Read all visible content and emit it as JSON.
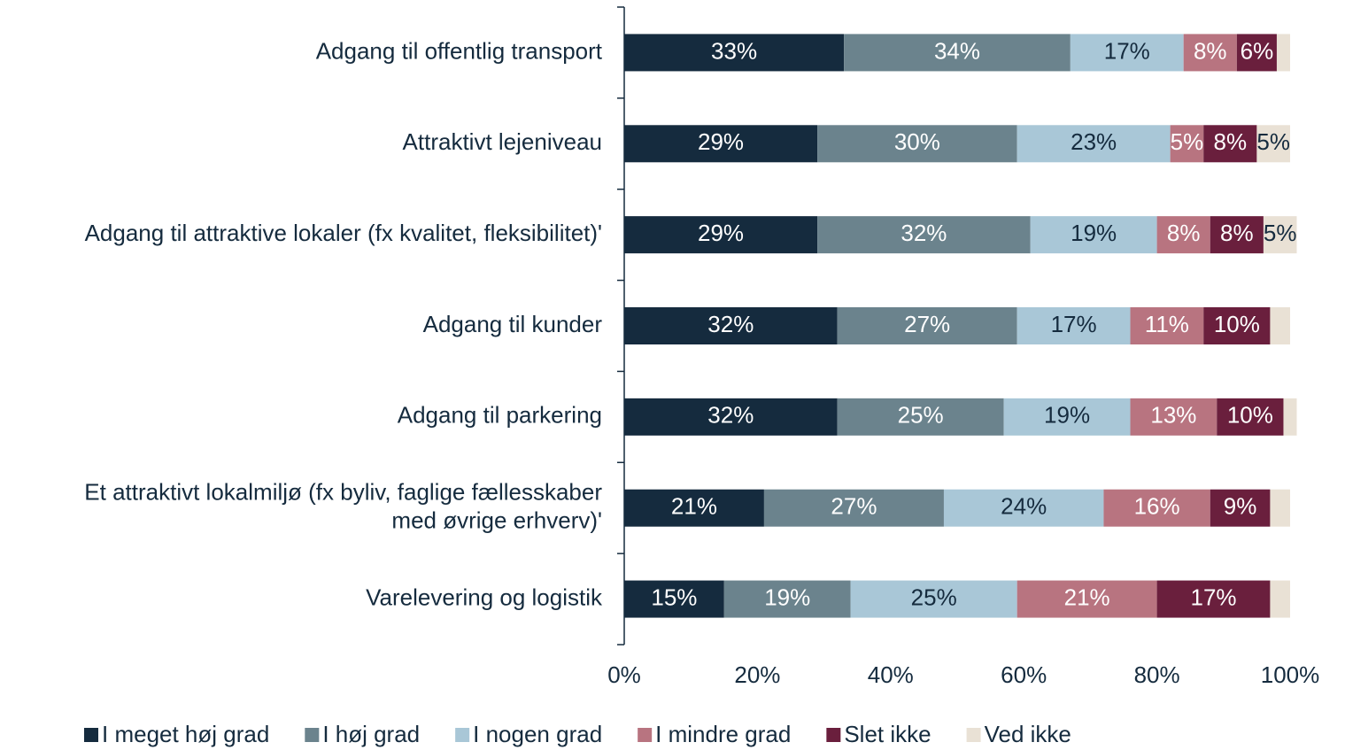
{
  "chart_data": {
    "type": "stacked_bar_horizontal",
    "categories": [
      "Adgang til offentlig transport",
      "Attraktivt lejeniveau",
      "Adgang til attraktive lokaler (fx kvalitet, fleksibilitet)'",
      "Adgang til kunder",
      "Adgang til parkering",
      "Et attraktivt lokalmiljø (fx byliv, faglige fællesskaber\nmed øvrige erhverv)'",
      "Varelevering og logistik"
    ],
    "series": [
      {
        "name": "I meget høj grad",
        "color": "#152b3e",
        "label_color": "#ffffff",
        "values": [
          33,
          29,
          29,
          32,
          32,
          21,
          15
        ],
        "value_labels": [
          "33%",
          "29%",
          "29%",
          "32%",
          "32%",
          "21%",
          "15%"
        ]
      },
      {
        "name": "I høj grad",
        "color": "#6b838d",
        "label_color": "#ffffff",
        "values": [
          34,
          30,
          32,
          27,
          25,
          27,
          19
        ],
        "value_labels": [
          "34%",
          "30%",
          "32%",
          "27%",
          "25%",
          "27%",
          "19%"
        ]
      },
      {
        "name": "I nogen grad",
        "color": "#a9c7d7",
        "label_color": "#152b3e",
        "values": [
          17,
          23,
          19,
          17,
          19,
          24,
          25
        ],
        "value_labels": [
          "17%",
          "23%",
          "19%",
          "17%",
          "19%",
          "24%",
          "25%"
        ]
      },
      {
        "name": "I mindre grad",
        "color": "#b87480",
        "label_color": "#ffffff",
        "values": [
          8,
          5,
          8,
          11,
          13,
          16,
          21
        ],
        "value_labels": [
          "8%",
          "5%",
          "8%",
          "11%",
          "13%",
          "16%",
          "21%"
        ]
      },
      {
        "name": "Slet ikke",
        "color": "#6a1f3d",
        "label_color": "#ffffff",
        "values": [
          6,
          8,
          8,
          10,
          10,
          9,
          17
        ],
        "value_labels": [
          "6%",
          "8%",
          "8%",
          "10%",
          "10%",
          "9%",
          "17%"
        ]
      },
      {
        "name": "Ved ikke",
        "color": "#e9e1d5",
        "label_color": "#152b3e",
        "values": [
          2,
          5,
          5,
          3,
          2,
          3,
          3
        ],
        "value_labels": [
          null,
          "5%",
          "5%",
          null,
          null,
          null,
          null
        ]
      }
    ],
    "xlim": [
      0,
      100
    ],
    "xticks": [
      {
        "value": 0,
        "label": "0%"
      },
      {
        "value": 20,
        "label": "20%"
      },
      {
        "value": 40,
        "label": "40%"
      },
      {
        "value": 60,
        "label": "60%"
      },
      {
        "value": 80,
        "label": "80%"
      },
      {
        "value": 100,
        "label": "100%"
      }
    ],
    "legend": "bottom"
  }
}
